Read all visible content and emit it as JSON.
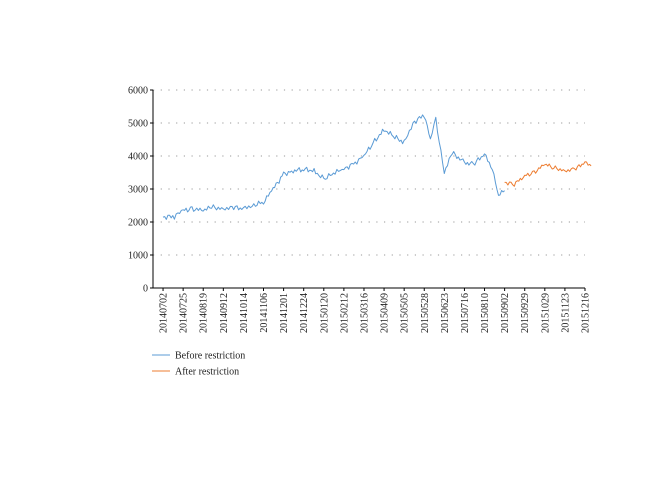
{
  "chart_data": {
    "type": "line",
    "title": "",
    "xlabel": "",
    "ylabel": "",
    "ylim": [
      0,
      6000
    ],
    "yticks": [
      0,
      1000,
      2000,
      3000,
      4000,
      5000,
      6000
    ],
    "x_tick_labels": [
      "20140702",
      "20140725",
      "20140819",
      "20140912",
      "20141014",
      "20141106",
      "20141201",
      "20141224",
      "20150120",
      "20150212",
      "20150316",
      "20150409",
      "20150505",
      "20150528",
      "20150623",
      "20150716",
      "20150810",
      "20150902",
      "20150929",
      "20151029",
      "20151123",
      "20151216"
    ],
    "grid": "horizontal-dotted",
    "legend_position": "bottom-left",
    "colors": {
      "before": "#5b9bd5",
      "after": "#ed7d31",
      "axis": "#000000",
      "grid": "#999999"
    },
    "series": [
      {
        "name": "Before restriction",
        "color": "#5b9bd5",
        "x": [
          "20140702",
          "20140715",
          "20140725",
          "20140805",
          "20140819",
          "20140829",
          "20140912",
          "20140926",
          "20141014",
          "20141024",
          "20141106",
          "20141118",
          "20141201",
          "20141212",
          "20141224",
          "20150107",
          "20150120",
          "20150202",
          "20150212",
          "20150302",
          "20150316",
          "20150327",
          "20150409",
          "20150421",
          "20150505",
          "20150515",
          "20150528",
          "20150605",
          "20150612",
          "20150623",
          "20150702",
          "20150716",
          "20150727",
          "20150810",
          "20150819",
          "20150826",
          "20150902"
        ],
        "values": [
          2150,
          2170,
          2350,
          2400,
          2350,
          2450,
          2400,
          2450,
          2400,
          2500,
          2600,
          3000,
          3450,
          3550,
          3600,
          3550,
          3300,
          3500,
          3600,
          3800,
          4000,
          4400,
          4800,
          4600,
          4400,
          5000,
          5250,
          4500,
          5100,
          3500,
          4100,
          3800,
          3750,
          4050,
          3600,
          2850,
          2950
        ]
      },
      {
        "name": "After restriction",
        "color": "#ed7d31",
        "x": [
          "20150902",
          "20150915",
          "20150929",
          "20151013",
          "20151029",
          "20151109",
          "20151123",
          "20151204",
          "20151216",
          "20151223"
        ],
        "values": [
          3200,
          3150,
          3400,
          3500,
          3750,
          3650,
          3550,
          3600,
          3800,
          3700
        ]
      }
    ]
  }
}
